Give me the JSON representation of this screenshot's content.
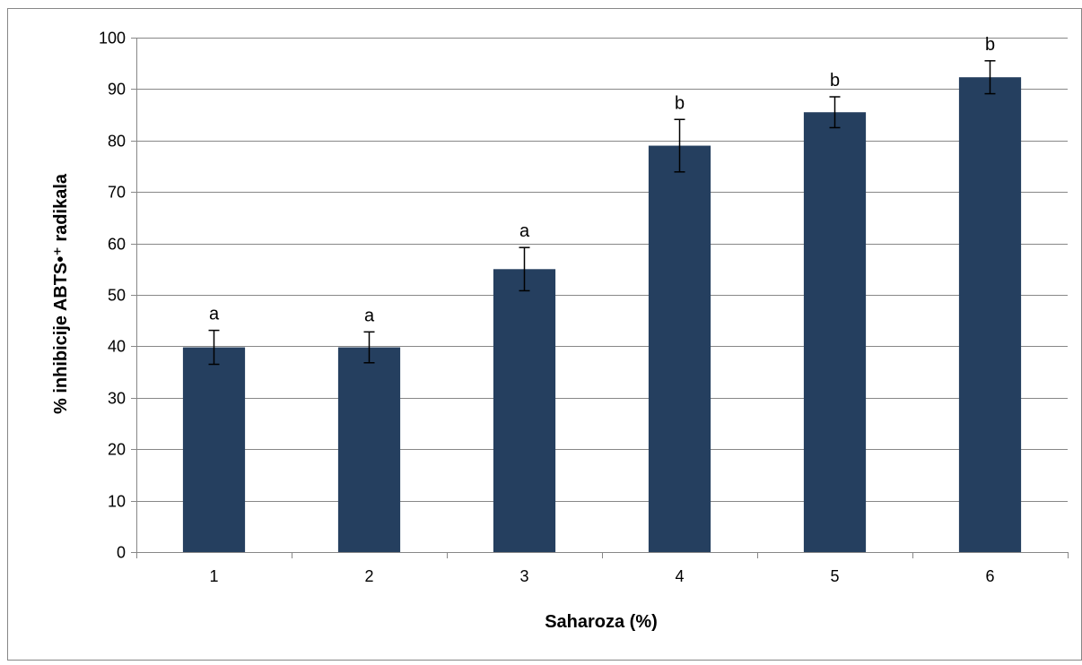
{
  "chart_data": {
    "type": "bar",
    "categories": [
      "1",
      "2",
      "3",
      "4",
      "5",
      "6"
    ],
    "values": [
      39.8,
      39.8,
      55.0,
      79.0,
      85.5,
      92.3
    ],
    "errors": [
      3.3,
      3.0,
      4.2,
      5.1,
      3.0,
      3.2
    ],
    "annotations": [
      "a",
      "a",
      "a",
      "b",
      "b",
      "b"
    ],
    "title": "",
    "xlabel": "Saharoza (%)",
    "ylabel": "% inhibicije ABTS•⁺ radikala",
    "ylim": [
      0,
      100
    ],
    "ytick_step": 10,
    "yticks": [
      "0",
      "10",
      "20",
      "30",
      "40",
      "50",
      "60",
      "70",
      "80",
      "90",
      "100"
    ],
    "grid": true,
    "legend": "none",
    "colors": {
      "bar": "#253f5f",
      "grid": "#878787",
      "axis": "#878787",
      "error_bar": "#000000",
      "border": "#878787"
    }
  }
}
